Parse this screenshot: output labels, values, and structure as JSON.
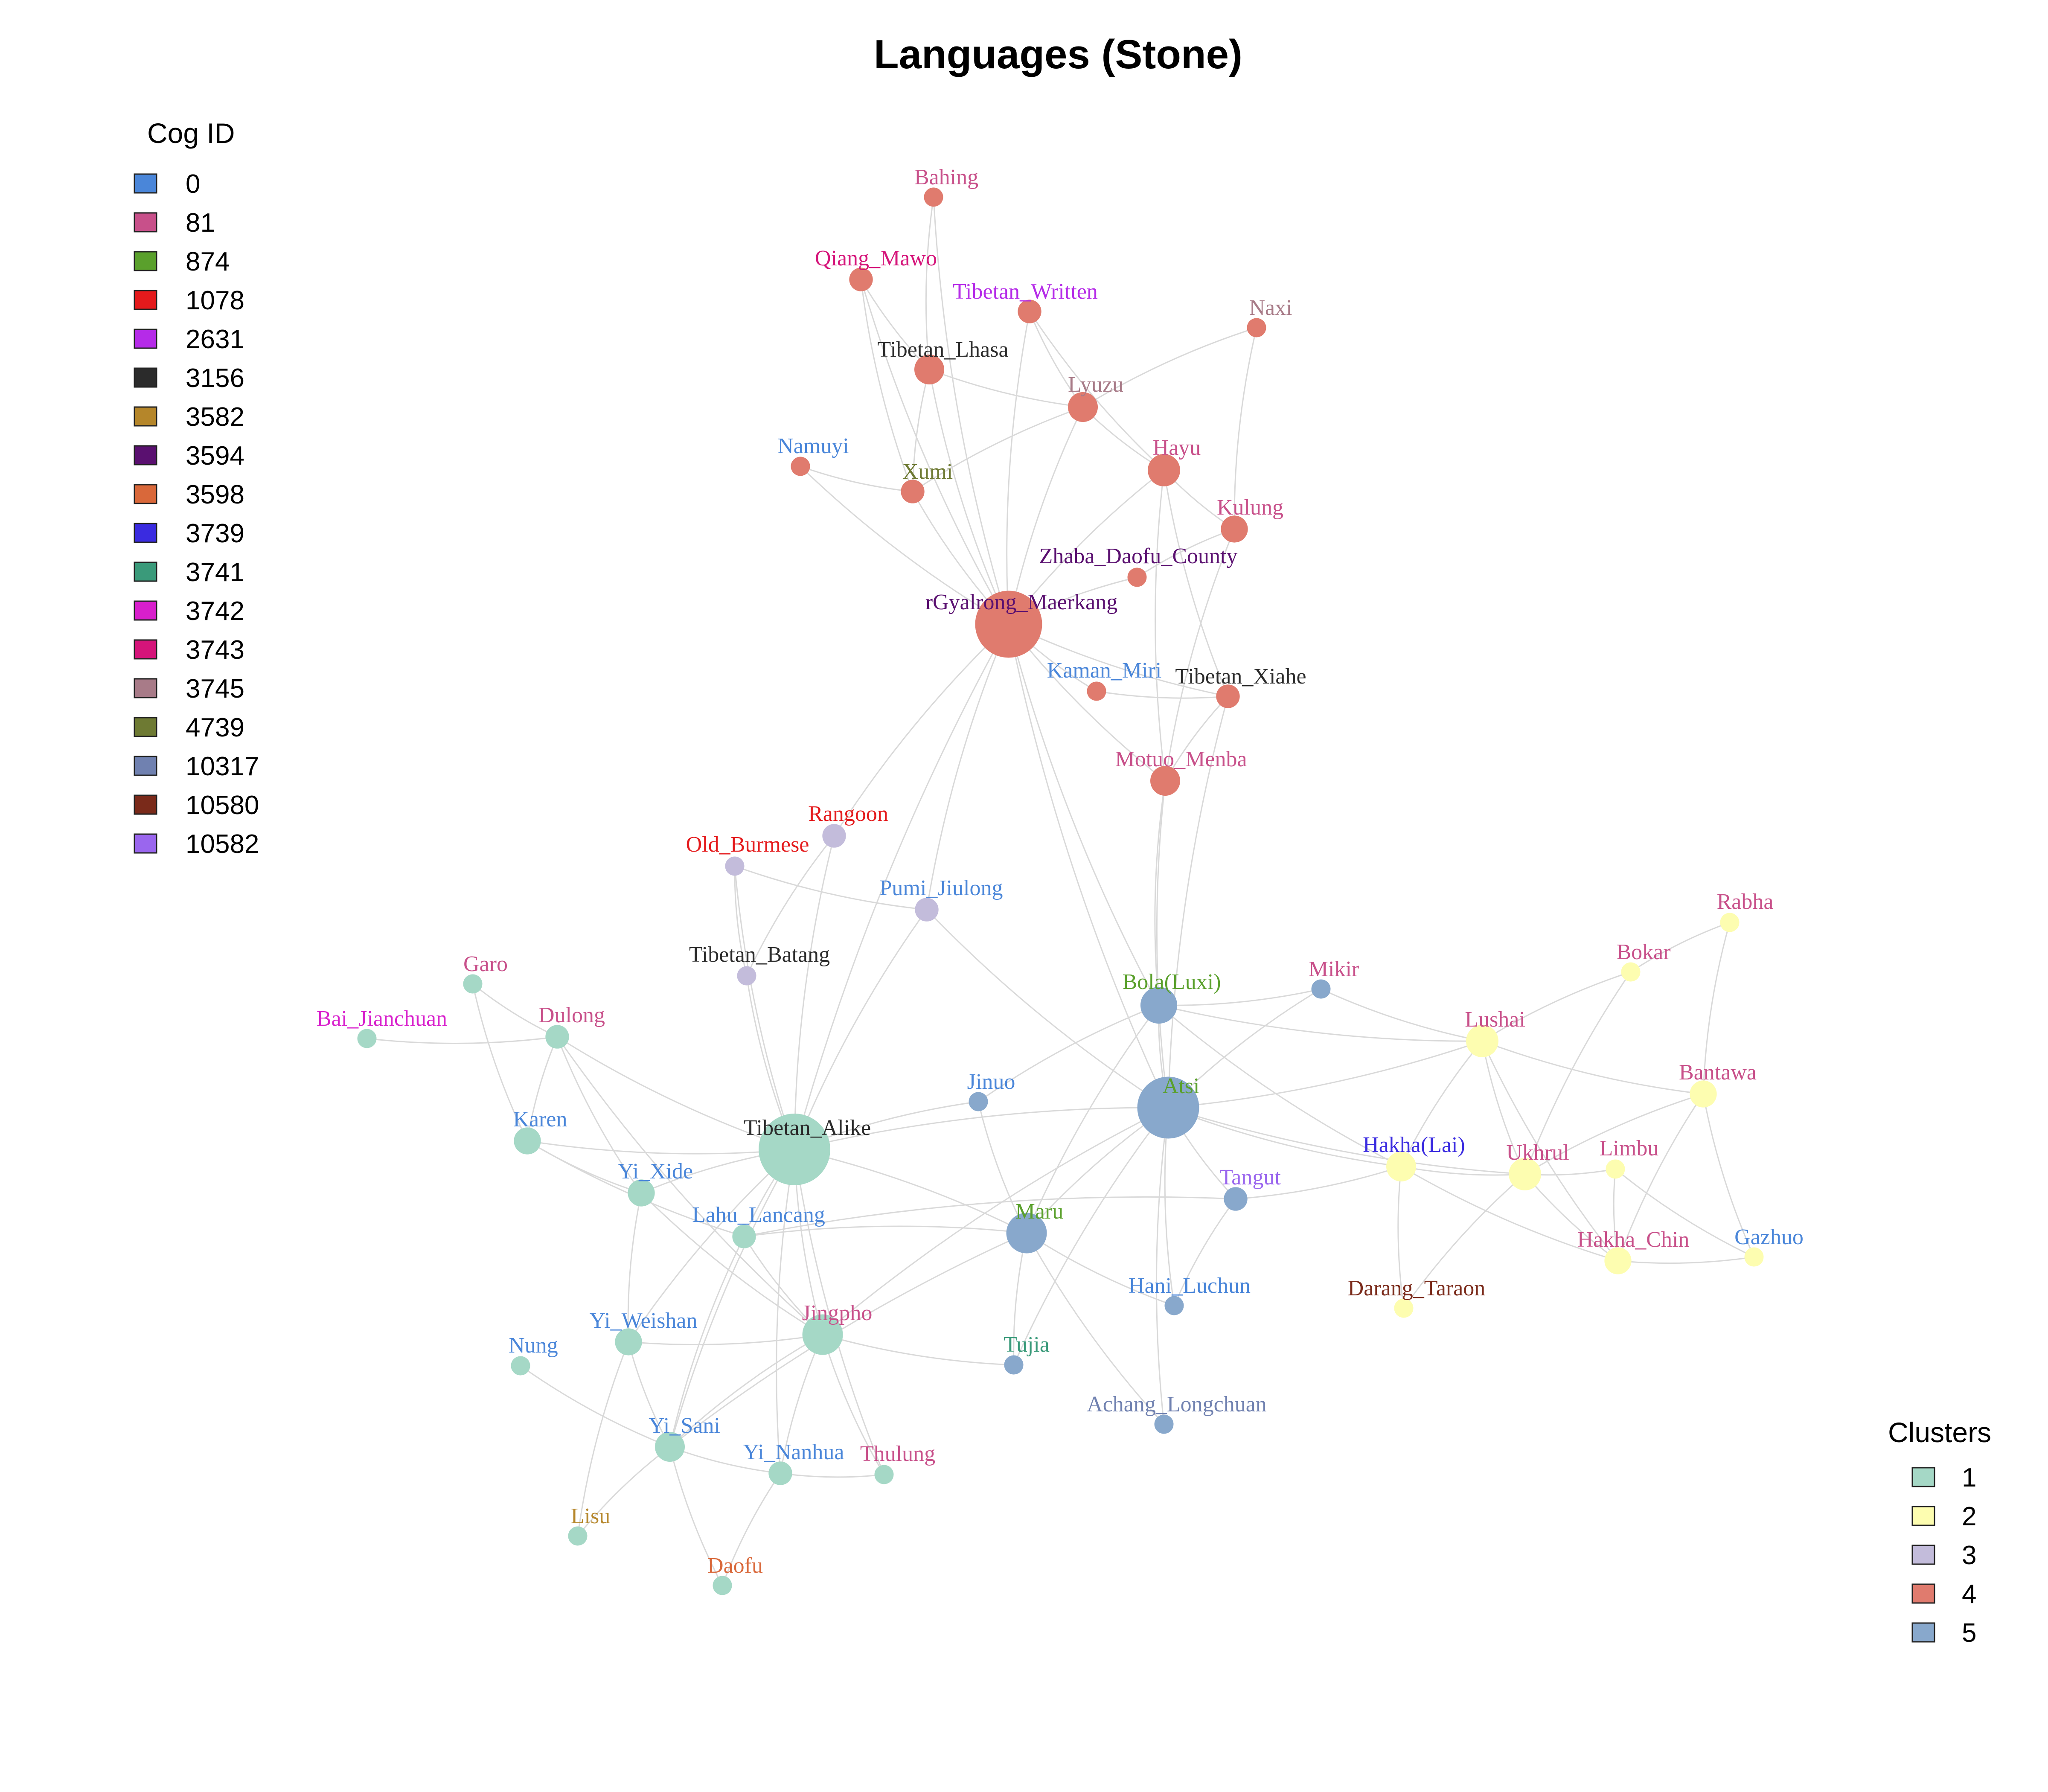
{
  "title": "Languages (Stone)",
  "legend_cog": {
    "heading": "Cog ID",
    "items": [
      {
        "label": "0",
        "color": "#4a86d9"
      },
      {
        "label": "81",
        "color": "#c8508a"
      },
      {
        "label": "874",
        "color": "#5aa02c"
      },
      {
        "label": "1078",
        "color": "#e41a1c"
      },
      {
        "label": "2631",
        "color": "#b52be8"
      },
      {
        "label": "3156",
        "color": "#2b2b2b"
      },
      {
        "label": "3582",
        "color": "#b5862a"
      },
      {
        "label": "3594",
        "color": "#5a1070"
      },
      {
        "label": "3598",
        "color": "#d9683a"
      },
      {
        "label": "3739",
        "color": "#3a2be0"
      },
      {
        "label": "3741",
        "color": "#3a9a7a"
      },
      {
        "label": "3742",
        "color": "#d81fcc"
      },
      {
        "label": "3743",
        "color": "#d5147a"
      },
      {
        "label": "3745",
        "color": "#a87b88"
      },
      {
        "label": "4739",
        "color": "#6e7a33"
      },
      {
        "label": "10317",
        "color": "#7081b0"
      },
      {
        "label": "10580",
        "color": "#7a2a1a"
      },
      {
        "label": "10582",
        "color": "#9a66ee"
      }
    ]
  },
  "legend_clusters": {
    "heading": "Clusters",
    "items": [
      {
        "label": "1",
        "color": "#a5d8c6"
      },
      {
        "label": "2",
        "color": "#fdfdb0"
      },
      {
        "label": "3",
        "color": "#c3bcdb"
      },
      {
        "label": "4",
        "color": "#e07b6e"
      },
      {
        "label": "5",
        "color": "#88a8cc"
      }
    ]
  },
  "nodes": [
    {
      "id": "Bahing",
      "cluster": "4",
      "cog": "81",
      "weight": 1
    },
    {
      "id": "Qiang_Mawo",
      "cluster": "4",
      "cog": "3743",
      "weight": 2
    },
    {
      "id": "Tibetan_Written",
      "cluster": "4",
      "cog": "2631",
      "weight": 2
    },
    {
      "id": "Naxi",
      "cluster": "4",
      "cog": "3745",
      "weight": 1
    },
    {
      "id": "Tibetan_Lhasa",
      "cluster": "4",
      "cog": "3156",
      "weight": 4
    },
    {
      "id": "Lyuzu",
      "cluster": "4",
      "cog": "3745",
      "weight": 4
    },
    {
      "id": "Namuyi",
      "cluster": "4",
      "cog": "0",
      "weight": 1
    },
    {
      "id": "Xumi",
      "cluster": "4",
      "cog": "4739",
      "weight": 2
    },
    {
      "id": "Hayu",
      "cluster": "4",
      "cog": "81",
      "weight": 5
    },
    {
      "id": "Kulung",
      "cluster": "4",
      "cog": "81",
      "weight": 3
    },
    {
      "id": "Zhaba_Daofu_County",
      "cluster": "4",
      "cog": "3594",
      "weight": 1
    },
    {
      "id": "rGyalrong_Maerkang",
      "cluster": "4",
      "cog": "3594",
      "weight": 30
    },
    {
      "id": "Kaman_Miri",
      "cluster": "4",
      "cog": "0",
      "weight": 1
    },
    {
      "id": "Tibetan_Xiahe",
      "cluster": "4",
      "cog": "3156",
      "weight": 2
    },
    {
      "id": "Motuo_Menba",
      "cluster": "4",
      "cog": "81",
      "weight": 4
    },
    {
      "id": "Rangoon",
      "cluster": "3",
      "cog": "1078",
      "weight": 2
    },
    {
      "id": "Old_Burmese",
      "cluster": "3",
      "cog": "1078",
      "weight": 1
    },
    {
      "id": "Pumi_Jiulong",
      "cluster": "3",
      "cog": "0",
      "weight": 2
    },
    {
      "id": "Tibetan_Batang",
      "cluster": "3",
      "cog": "3156",
      "weight": 1
    },
    {
      "id": "Bola(Luxi)",
      "cluster": "5",
      "cog": "874",
      "weight": 7
    },
    {
      "id": "Mikir",
      "cluster": "5",
      "cog": "81",
      "weight": 1
    },
    {
      "id": "Atsi",
      "cluster": "5",
      "cog": "874",
      "weight": 25
    },
    {
      "id": "Jinuo",
      "cluster": "5",
      "cog": "0",
      "weight": 1
    },
    {
      "id": "Tangut",
      "cluster": "5",
      "cog": "10582",
      "weight": 2
    },
    {
      "id": "Maru",
      "cluster": "5",
      "cog": "874",
      "weight": 9
    },
    {
      "id": "Hani_Luchun",
      "cluster": "5",
      "cog": "0",
      "weight": 1
    },
    {
      "id": "Tujia",
      "cluster": "5",
      "cog": "3741",
      "weight": 1
    },
    {
      "id": "Achang_Longchuan",
      "cluster": "5",
      "cog": "10317",
      "weight": 1
    },
    {
      "id": "Rabha",
      "cluster": "2",
      "cog": "81",
      "weight": 1
    },
    {
      "id": "Bokar",
      "cluster": "2",
      "cog": "81",
      "weight": 1
    },
    {
      "id": "Lushai",
      "cluster": "2",
      "cog": "81",
      "weight": 5
    },
    {
      "id": "Bantawa",
      "cluster": "2",
      "cog": "81",
      "weight": 3
    },
    {
      "id": "Hakha(Lai)",
      "cluster": "2",
      "cog": "3739",
      "weight": 4
    },
    {
      "id": "Ukhrul",
      "cluster": "2",
      "cog": "81",
      "weight": 5
    },
    {
      "id": "Limbu",
      "cluster": "2",
      "cog": "81",
      "weight": 1
    },
    {
      "id": "Hakha_Chin",
      "cluster": "2",
      "cog": "81",
      "weight": 3
    },
    {
      "id": "Gazhuo",
      "cluster": "2",
      "cog": "0",
      "weight": 1
    },
    {
      "id": "Darang_Taraon",
      "cluster": "2",
      "cog": "10580",
      "weight": 1
    },
    {
      "id": "Garo",
      "cluster": "1",
      "cog": "81",
      "weight": 1
    },
    {
      "id": "Bai_Jianchuan",
      "cluster": "1",
      "cog": "3742",
      "weight": 1
    },
    {
      "id": "Dulong",
      "cluster": "1",
      "cog": "81",
      "weight": 2
    },
    {
      "id": "Karen",
      "cluster": "1",
      "cog": "0",
      "weight": 3
    },
    {
      "id": "Tibetan_Alike",
      "cluster": "1",
      "cog": "3156",
      "weight": 35
    },
    {
      "id": "Yi_Xide",
      "cluster": "1",
      "cog": "0",
      "weight": 3
    },
    {
      "id": "Lahu_Lancang",
      "cluster": "1",
      "cog": "0",
      "weight": 2
    },
    {
      "id": "Yi_Weishan",
      "cluster": "1",
      "cog": "0",
      "weight": 3
    },
    {
      "id": "Nung",
      "cluster": "1",
      "cog": "0",
      "weight": 1
    },
    {
      "id": "Jingpho",
      "cluster": "1",
      "cog": "81",
      "weight": 9
    },
    {
      "id": "Yi_Sani",
      "cluster": "1",
      "cog": "0",
      "weight": 4
    },
    {
      "id": "Yi_Nanhua",
      "cluster": "1",
      "cog": "0",
      "weight": 2
    },
    {
      "id": "Thulung",
      "cluster": "1",
      "cog": "81",
      "weight": 1
    },
    {
      "id": "Lisu",
      "cluster": "1",
      "cog": "3582",
      "weight": 1
    },
    {
      "id": "Daofu",
      "cluster": "1",
      "cog": "3598",
      "weight": 1
    }
  ],
  "edges": [
    [
      "Bahing",
      "Tibetan_Lhasa"
    ],
    [
      "Bahing",
      "rGyalrong_Maerkang"
    ],
    [
      "Qiang_Mawo",
      "Tibetan_Lhasa"
    ],
    [
      "Qiang_Mawo",
      "Xumi"
    ],
    [
      "Qiang_Mawo",
      "rGyalrong_Maerkang"
    ],
    [
      "Tibetan_Written",
      "Lyuzu"
    ],
    [
      "Tibetan_Written",
      "Hayu"
    ],
    [
      "Tibetan_Written",
      "rGyalrong_Maerkang"
    ],
    [
      "Naxi",
      "Lyuzu"
    ],
    [
      "Naxi",
      "Kulung"
    ],
    [
      "Tibetan_Lhasa",
      "Lyuzu"
    ],
    [
      "Tibetan_Lhasa",
      "rGyalrong_Maerkang"
    ],
    [
      "Tibetan_Lhasa",
      "Xumi"
    ],
    [
      "Lyuzu",
      "Hayu"
    ],
    [
      "Lyuzu",
      "rGyalrong_Maerkang"
    ],
    [
      "Lyuzu",
      "Xumi"
    ],
    [
      "Namuyi",
      "Xumi"
    ],
    [
      "Namuyi",
      "rGyalrong_Maerkang"
    ],
    [
      "Xumi",
      "rGyalrong_Maerkang"
    ],
    [
      "Hayu",
      "Kulung"
    ],
    [
      "Hayu",
      "rGyalrong_Maerkang"
    ],
    [
      "Hayu",
      "Tibetan_Xiahe"
    ],
    [
      "Hayu",
      "Motuo_Menba"
    ],
    [
      "Kulung",
      "Zhaba_Daofu_County"
    ],
    [
      "Kulung",
      "Motuo_Menba"
    ],
    [
      "Zhaba_Daofu_County",
      "rGyalrong_Maerkang"
    ],
    [
      "rGyalrong_Maerkang",
      "Kaman_Miri"
    ],
    [
      "rGyalrong_Maerkang",
      "Tibetan_Xiahe"
    ],
    [
      "rGyalrong_Maerkang",
      "Motuo_Menba"
    ],
    [
      "rGyalrong_Maerkang",
      "Rangoon"
    ],
    [
      "rGyalrong_Maerkang",
      "Pumi_Jiulong"
    ],
    [
      "rGyalrong_Maerkang",
      "Tibetan_Alike"
    ],
    [
      "rGyalrong_Maerkang",
      "Atsi"
    ],
    [
      "rGyalrong_Maerkang",
      "Bola(Luxi)"
    ],
    [
      "Kaman_Miri",
      "Tibetan_Xiahe"
    ],
    [
      "Tibetan_Xiahe",
      "Motuo_Menba"
    ],
    [
      "Motuo_Menba",
      "Bola(Luxi)"
    ],
    [
      "Motuo_Menba",
      "Atsi"
    ],
    [
      "Tibetan_Xiahe",
      "Atsi"
    ],
    [
      "Rangoon",
      "Tibetan_Alike"
    ],
    [
      "Rangoon",
      "Tibetan_Batang"
    ],
    [
      "Old_Burmese",
      "Tibetan_Batang"
    ],
    [
      "Old_Burmese",
      "Pumi_Jiulong"
    ],
    [
      "Old_Burmese",
      "Tibetan_Alike"
    ],
    [
      "Pumi_Jiulong",
      "Tibetan_Alike"
    ],
    [
      "Pumi_Jiulong",
      "Atsi"
    ],
    [
      "Tibetan_Batang",
      "Tibetan_Alike"
    ],
    [
      "Bola(Luxi)",
      "Atsi"
    ],
    [
      "Bola(Luxi)",
      "Mikir"
    ],
    [
      "Bola(Luxi)",
      "Jinuo"
    ],
    [
      "Bola(Luxi)",
      "Maru"
    ],
    [
      "Bola(Luxi)",
      "Lushai"
    ],
    [
      "Bola(Luxi)",
      "Hakha(Lai)"
    ],
    [
      "Mikir",
      "Atsi"
    ],
    [
      "Mikir",
      "Lushai"
    ],
    [
      "Atsi",
      "Tibetan_Alike"
    ],
    [
      "Atsi",
      "Maru"
    ],
    [
      "Atsi",
      "Tangut"
    ],
    [
      "Atsi",
      "Hakha(Lai)"
    ],
    [
      "Atsi",
      "Ukhrul"
    ],
    [
      "Atsi",
      "Hani_Luchun"
    ],
    [
      "Atsi",
      "Achang_Longchuan"
    ],
    [
      "Atsi",
      "Tujia"
    ],
    [
      "Atsi",
      "Jingpho"
    ],
    [
      "Atsi",
      "Lushai"
    ],
    [
      "Jinuo",
      "Tibetan_Alike"
    ],
    [
      "Jinuo",
      "Maru"
    ],
    [
      "Tangut",
      "Hakha(Lai)"
    ],
    [
      "Tangut",
      "Hani_Luchun"
    ],
    [
      "Tangut",
      "Lahu_Lancang"
    ],
    [
      "Maru",
      "Tibetan_Alike"
    ],
    [
      "Maru",
      "Lahu_Lancang"
    ],
    [
      "Maru",
      "Hani_Luchun"
    ],
    [
      "Maru",
      "Tujia"
    ],
    [
      "Maru",
      "Achang_Longchuan"
    ],
    [
      "Maru",
      "Yi_Sani"
    ],
    [
      "Rabha",
      "Bokar"
    ],
    [
      "Rabha",
      "Bantawa"
    ],
    [
      "Bokar",
      "Lushai"
    ],
    [
      "Bokar",
      "Ukhrul"
    ],
    [
      "Lushai",
      "Bantawa"
    ],
    [
      "Lushai",
      "Hakha(Lai)"
    ],
    [
      "Lushai",
      "Ukhrul"
    ],
    [
      "Lushai",
      "Hakha_Chin"
    ],
    [
      "Bantawa",
      "Ukhrul"
    ],
    [
      "Bantawa",
      "Hakha_Chin"
    ],
    [
      "Bantawa",
      "Gazhuo"
    ],
    [
      "Hakha(Lai)",
      "Ukhrul"
    ],
    [
      "Hakha(Lai)",
      "Hakha_Chin"
    ],
    [
      "Hakha(Lai)",
      "Darang_Taraon"
    ],
    [
      "Ukhrul",
      "Limbu"
    ],
    [
      "Ukhrul",
      "Hakha_Chin"
    ],
    [
      "Ukhrul",
      "Darang_Taraon"
    ],
    [
      "Limbu",
      "Hakha_Chin"
    ],
    [
      "Hakha_Chin",
      "Gazhuo"
    ],
    [
      "Limbu",
      "Gazhuo"
    ],
    [
      "Garo",
      "Karen"
    ],
    [
      "Garo",
      "Dulong"
    ],
    [
      "Bai_Jianchuan",
      "Dulong"
    ],
    [
      "Dulong",
      "Karen"
    ],
    [
      "Dulong",
      "Tibetan_Alike"
    ],
    [
      "Dulong",
      "Jingpho"
    ],
    [
      "Karen",
      "Tibetan_Alike"
    ],
    [
      "Karen",
      "Yi_Xide"
    ],
    [
      "Karen",
      "Lahu_Lancang"
    ],
    [
      "Tibetan_Alike",
      "Yi_Xide"
    ],
    [
      "Tibetan_Alike",
      "Lahu_Lancang"
    ],
    [
      "Tibetan_Alike",
      "Jingpho"
    ],
    [
      "Tibetan_Alike",
      "Yi_Weishan"
    ],
    [
      "Tibetan_Alike",
      "Yi_Sani"
    ],
    [
      "Tibetan_Alike",
      "Yi_Nanhua"
    ],
    [
      "Tibetan_Alike",
      "Thulung"
    ],
    [
      "Yi_Xide",
      "Yi_Weishan"
    ],
    [
      "Yi_Xide",
      "Jingpho"
    ],
    [
      "Lahu_Lancang",
      "Jingpho"
    ],
    [
      "Lahu_Lancang",
      "Yi_Sani"
    ],
    [
      "Yi_Weishan",
      "Jingpho"
    ],
    [
      "Yi_Weishan",
      "Yi_Sani"
    ],
    [
      "Yi_Weishan",
      "Lisu"
    ],
    [
      "Nung",
      "Yi_Sani"
    ],
    [
      "Jingpho",
      "Yi_Sani"
    ],
    [
      "Jingpho",
      "Yi_Nanhua"
    ],
    [
      "Jingpho",
      "Thulung"
    ],
    [
      "Jingpho",
      "Tujia"
    ],
    [
      "Yi_Sani",
      "Yi_Nanhua"
    ],
    [
      "Yi_Sani",
      "Lisu"
    ],
    [
      "Yi_Sani",
      "Daofu"
    ],
    [
      "Yi_Nanhua",
      "Daofu"
    ],
    [
      "Yi_Nanhua",
      "Thulung"
    ],
    [
      "Dulong",
      "Yi_Xide"
    ]
  ]
}
